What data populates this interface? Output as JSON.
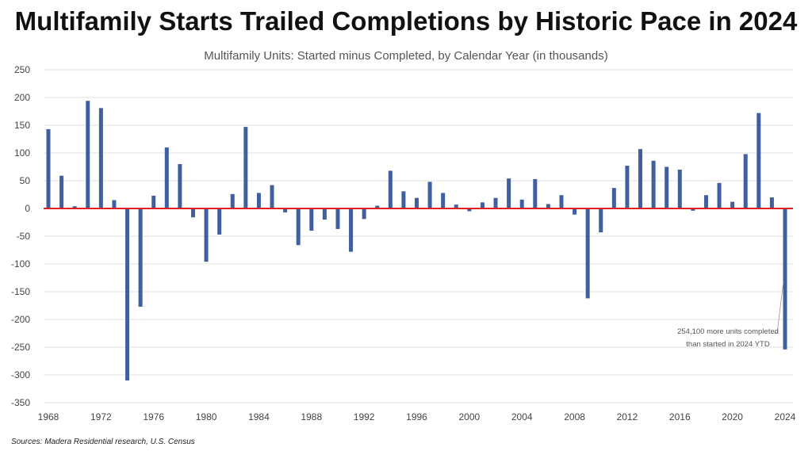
{
  "chart_data": {
    "type": "bar",
    "title": "Multifamily Starts Trailed Completions by Historic Pace in 2024",
    "subtitle": "Multifamily Units: Started minus Completed, by Calendar Year (in thousands)",
    "xlabel": "",
    "ylabel": "",
    "ylim": [
      -350,
      250
    ],
    "yticks": [
      250,
      200,
      150,
      100,
      50,
      0,
      -50,
      -100,
      -150,
      -200,
      -250,
      -300,
      -350
    ],
    "xticks": [
      1968,
      1972,
      1976,
      1980,
      1984,
      1988,
      1992,
      1996,
      2000,
      2004,
      2008,
      2012,
      2016,
      2020,
      2024
    ],
    "grid": true,
    "bar_color": "#3f5f9e",
    "zero_line_color": "#e02020",
    "x": [
      1968,
      1969,
      1970,
      1971,
      1972,
      1973,
      1974,
      1975,
      1976,
      1977,
      1978,
      1979,
      1980,
      1981,
      1982,
      1983,
      1984,
      1985,
      1986,
      1987,
      1988,
      1989,
      1990,
      1991,
      1992,
      1993,
      1994,
      1995,
      1996,
      1997,
      1998,
      1999,
      2000,
      2001,
      2002,
      2003,
      2004,
      2005,
      2006,
      2007,
      2008,
      2009,
      2010,
      2011,
      2012,
      2013,
      2014,
      2015,
      2016,
      2017,
      2018,
      2019,
      2020,
      2021,
      2022,
      2023,
      2024
    ],
    "values": [
      143,
      59,
      4,
      194,
      181,
      15,
      -310,
      -177,
      23,
      110,
      80,
      -16,
      -96,
      -47,
      26,
      147,
      28,
      42,
      -7,
      -66,
      -40,
      -20,
      -37,
      -78,
      -19,
      5,
      68,
      31,
      19,
      48,
      28,
      7,
      -5,
      11,
      19,
      54,
      16,
      53,
      8,
      24,
      -11,
      -162,
      -43,
      37,
      77,
      107,
      86,
      75,
      70,
      -4,
      24,
      46,
      12,
      98,
      172,
      20,
      -254
    ],
    "annotation": [
      "254,100 more units completed",
      "than started in 2024 YTD"
    ],
    "source": "Sources: Madera Residential research, U.S. Census"
  }
}
